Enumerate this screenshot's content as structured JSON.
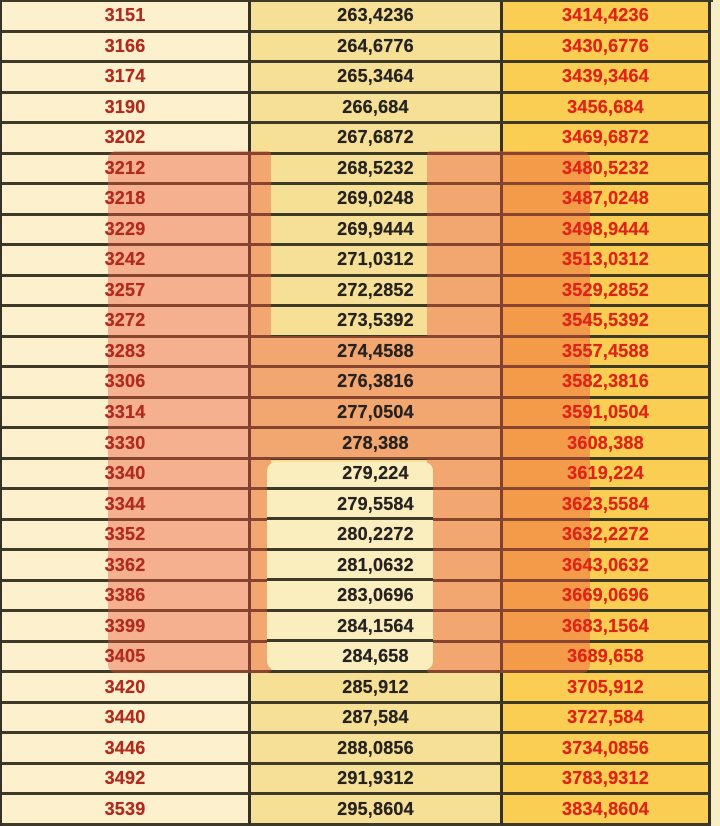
{
  "table": {
    "columns": [
      {
        "name": "base-value",
        "bg": "#FCF1CC",
        "text_color": "#B02A20"
      },
      {
        "name": "small-value",
        "bg": "#F6E096",
        "text_color": "#262220"
      },
      {
        "name": "sum-value",
        "bg": "#F9CE52",
        "text_color": "#DE2318"
      }
    ],
    "rows": [
      [
        "3151",
        "263,4236",
        "3414,4236"
      ],
      [
        "3166",
        "264,6776",
        "3430,6776"
      ],
      [
        "3174",
        "265,3464",
        "3439,3464"
      ],
      [
        "3190",
        "266,684",
        "3456,684"
      ],
      [
        "3202",
        "267,6872",
        "3469,6872"
      ],
      [
        "3212",
        "268,5232",
        "3480,5232"
      ],
      [
        "3218",
        "269,0248",
        "3487,0248"
      ],
      [
        "3229",
        "269,9444",
        "3498,9444"
      ],
      [
        "3242",
        "271,0312",
        "3513,0312"
      ],
      [
        "3257",
        "272,2852",
        "3529,2852"
      ],
      [
        "3272",
        "273,5392",
        "3545,5392"
      ],
      [
        "3283",
        "274,4588",
        "3557,4588"
      ],
      [
        "3306",
        "276,3816",
        "3582,3816"
      ],
      [
        "3314",
        "277,0504",
        "3591,0504"
      ],
      [
        "3330",
        "278,388",
        "3608,388"
      ],
      [
        "3340",
        "279,224",
        "3619,224"
      ],
      [
        "3344",
        "279,5584",
        "3623,5584"
      ],
      [
        "3352",
        "280,2272",
        "3632,2272"
      ],
      [
        "3362",
        "281,0632",
        "3643,0632"
      ],
      [
        "3386",
        "283,0696",
        "3669,0696"
      ],
      [
        "3399",
        "284,1564",
        "3683,1564"
      ],
      [
        "3405",
        "284,658",
        "3689,658"
      ],
      [
        "3420",
        "285,912",
        "3705,912"
      ],
      [
        "3440",
        "287,584",
        "3727,584"
      ],
      [
        "3446",
        "288,0856",
        "3734,0856"
      ],
      [
        "3492",
        "291,9312",
        "3783,9312"
      ],
      [
        "3539",
        "295,8604",
        "3834,8604"
      ]
    ],
    "highlighted_row_range": [
      "3212",
      "3405"
    ],
    "fully_covered_row_range": [
      "3283",
      "3330"
    ],
    "cream_patch_row_range": [
      "3340",
      "3405"
    ]
  },
  "colors": {
    "page_bg": "#F7EEC6",
    "col1_bg": "#FCF1CC",
    "col2_bg": "#F6E096",
    "col3_bg": "#F9CE52",
    "col1_fg": "#B02A20",
    "col2_fg": "#262220",
    "col3_fg": "#DE2318",
    "row_border": "#3E3A28",
    "col_border": "#35312A",
    "highlight_rgba": "rgba(235,85,60,0.42)",
    "cream_patch": "#FAEDBE"
  }
}
